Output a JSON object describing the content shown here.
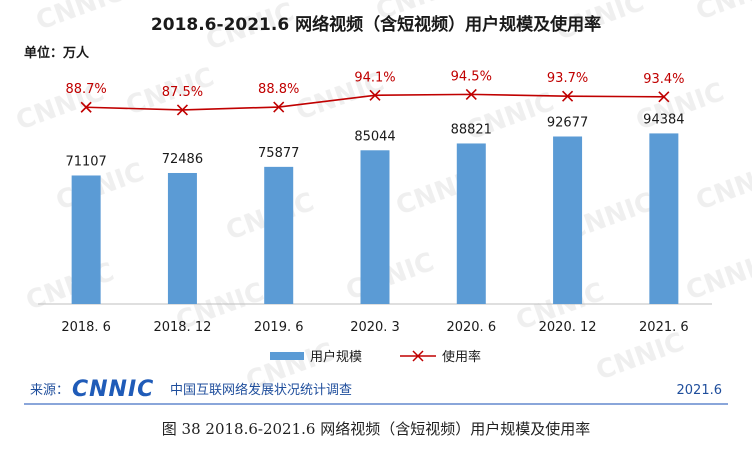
{
  "chart_data": {
    "type": "bar",
    "title": "2018.6-2021.6 网络视频（含短视频）用户规模及使用率",
    "unit_label": "单位：万人",
    "categories": [
      "2018. 6",
      "2018. 12",
      "2019. 6",
      "2020. 3",
      "2020. 6",
      "2020. 12",
      "2021. 6"
    ],
    "series": [
      {
        "name": "用户规模",
        "kind": "bar",
        "color": "#5b9bd5",
        "values": [
          71107,
          72486,
          75877,
          85044,
          88821,
          92677,
          94384
        ],
        "labels": [
          "71107",
          "72486",
          "75877",
          "85044",
          "88821",
          "92677",
          "94384"
        ]
      },
      {
        "name": "使用率",
        "kind": "line",
        "color": "#c00000",
        "values": [
          88.7,
          87.5,
          88.8,
          94.1,
          94.5,
          93.7,
          93.4
        ],
        "labels": [
          "88.7%",
          "87.5%",
          "88.8%",
          "94.1%",
          "94.5%",
          "93.7%",
          "93.4%"
        ]
      }
    ],
    "ylim": [
      0,
      135000
    ],
    "rate_ylim": [
      0,
      110
    ],
    "legend_position": "bottom-center",
    "grid": false
  },
  "source": {
    "label": "来源：",
    "logo_text": "CNNIC",
    "org": "中国互联网络发展状况统计调查",
    "date": "2021.6"
  },
  "watermark": "CNNIC",
  "caption": "图 38    2018.6-2021.6 网络视频（含短视频）用户规模及使用率",
  "colors": {
    "brand_blue": "#1f5bb8",
    "source_blue": "#1f4e9c",
    "rule": "#4472c4"
  }
}
